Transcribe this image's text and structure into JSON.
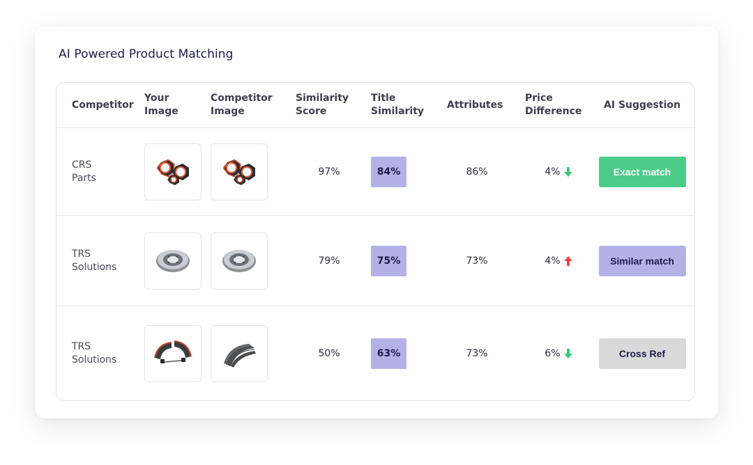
{
  "title": "AI Powered Product Matching",
  "headers": {
    "competitor": "Competitor",
    "your_image": [
      "Your",
      "Image"
    ],
    "competitor_image": [
      "Competitor",
      "Image"
    ],
    "similarity_score": [
      "Similarity",
      "Score"
    ],
    "title_similarity": [
      "Title",
      "Similarity"
    ],
    "attributes": "Attributes",
    "price_difference": [
      "Price",
      "Difference"
    ],
    "ai_suggestion": "AI Suggestion"
  },
  "rows": [
    {
      "competitor": [
        "CRS",
        "Parts"
      ],
      "your_image": "hex-nuts-icon",
      "competitor_image": "hex-nuts-icon",
      "similarity_score": "97%",
      "title_similarity": "84%",
      "attributes": "86%",
      "price_difference": "4%",
      "price_direction": "down",
      "ai_suggestion": "Exact match"
    },
    {
      "competitor": [
        "TRS",
        "Solutions"
      ],
      "your_image": "brake-drum-icon",
      "competitor_image": "brake-drum-icon",
      "similarity_score": "79%",
      "title_similarity": "75%",
      "attributes": "73%",
      "price_difference": "4%",
      "price_direction": "up",
      "ai_suggestion": "Similar match"
    },
    {
      "competitor": [
        "TRS",
        "Solutions"
      ],
      "your_image": "brake-shoe-icon",
      "competitor_image": "brake-shoes-stack-icon",
      "similarity_score": "50%",
      "title_similarity": "63%",
      "attributes": "73%",
      "price_difference": "6%",
      "price_direction": "down",
      "ai_suggestion": "Cross Ref"
    }
  ],
  "colors": {
    "exact_match_bg": "#4ccc8a",
    "similar_match_bg": "#b3b1e6",
    "cross_ref_bg": "#d9d9d9",
    "badge_bg": "#b3b1e6",
    "arrow_down": "#3ec77a",
    "arrow_up": "#ef4444",
    "title_color": "#1d1b4b"
  }
}
